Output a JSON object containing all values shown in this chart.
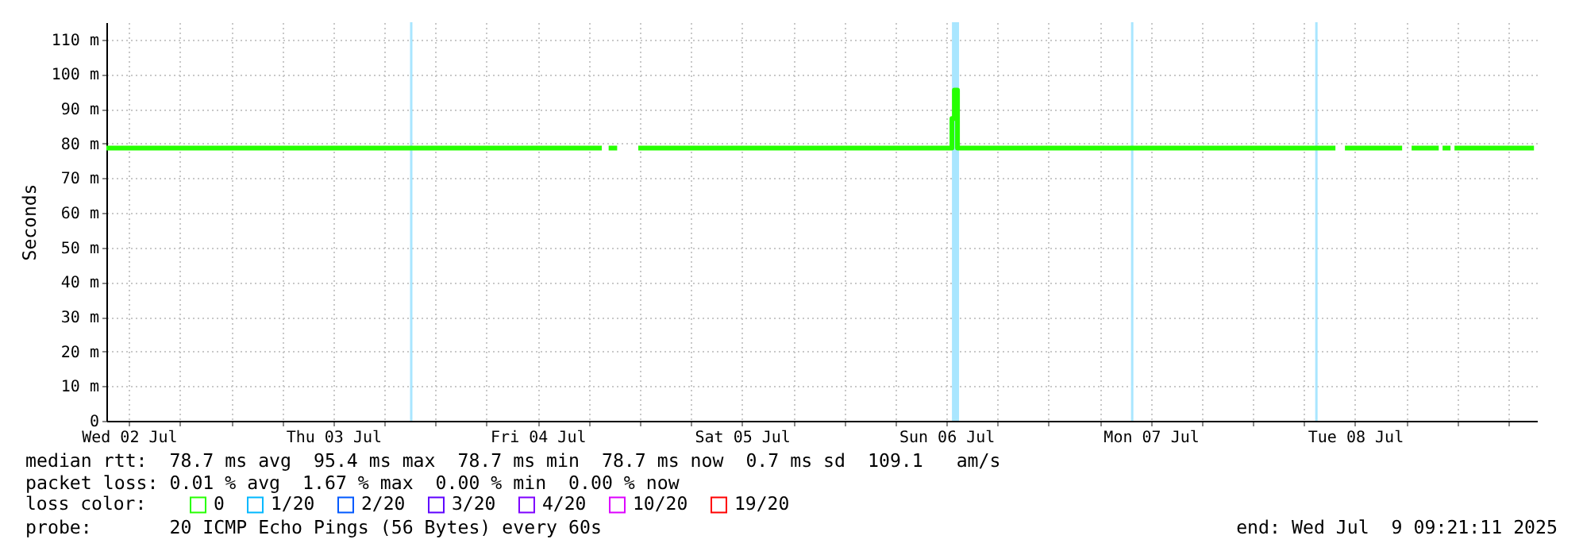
{
  "chart_data": {
    "type": "line",
    "ylabel": "Seconds",
    "legend_title": "loss color:",
    "legend": "bottom",
    "grid": true,
    "xlim": [
      "2025-07-02T09:21",
      "2025-07-09T09:21"
    ],
    "xticks": [
      {
        "value": "2025-07-02T12:00",
        "label": "Wed 02 Jul"
      },
      {
        "value": "2025-07-02T18:00",
        "label": null
      },
      {
        "value": "2025-07-03T00:00",
        "label": null
      },
      {
        "value": "2025-07-03T06:00",
        "label": null
      },
      {
        "value": "2025-07-03T12:00",
        "label": "Thu 03 Jul"
      },
      {
        "value": "2025-07-03T18:00",
        "label": null
      },
      {
        "value": "2025-07-04T00:00",
        "label": null
      },
      {
        "value": "2025-07-04T06:00",
        "label": null
      },
      {
        "value": "2025-07-04T12:00",
        "label": "Fri 04 Jul"
      },
      {
        "value": "2025-07-04T18:00",
        "label": null
      },
      {
        "value": "2025-07-05T00:00",
        "label": null
      },
      {
        "value": "2025-07-05T06:00",
        "label": null
      },
      {
        "value": "2025-07-05T12:00",
        "label": "Sat 05 Jul"
      },
      {
        "value": "2025-07-05T18:00",
        "label": null
      },
      {
        "value": "2025-07-06T00:00",
        "label": null
      },
      {
        "value": "2025-07-06T06:00",
        "label": null
      },
      {
        "value": "2025-07-06T12:00",
        "label": "Sun 06 Jul"
      },
      {
        "value": "2025-07-06T18:00",
        "label": null
      },
      {
        "value": "2025-07-07T00:00",
        "label": null
      },
      {
        "value": "2025-07-07T06:00",
        "label": null
      },
      {
        "value": "2025-07-07T12:00",
        "label": "Mon 07 Jul"
      },
      {
        "value": "2025-07-07T18:00",
        "label": null
      },
      {
        "value": "2025-07-08T00:00",
        "label": null
      },
      {
        "value": "2025-07-08T06:00",
        "label": null
      },
      {
        "value": "2025-07-08T12:00",
        "label": "Tue 08 Jul"
      },
      {
        "value": "2025-07-08T18:00",
        "label": null
      },
      {
        "value": "2025-07-09T00:00",
        "label": null
      },
      {
        "value": "2025-07-09T06:00",
        "label": null
      }
    ],
    "ylim": [
      0,
      115
    ],
    "yticks": [
      0,
      {
        "value": 10,
        "label": "10 m"
      },
      {
        "value": 20,
        "label": "20 m"
      },
      {
        "value": 30,
        "label": "30 m"
      },
      {
        "value": 40,
        "label": "40 m"
      },
      {
        "value": 50,
        "label": "50 m"
      },
      {
        "value": 60,
        "label": "60 m"
      },
      {
        "value": 70,
        "label": "70 m"
      },
      {
        "value": 80,
        "label": "80 m"
      },
      {
        "value": 90,
        "label": "90 m"
      },
      {
        "value": 100,
        "label": "100 m"
      },
      {
        "value": 110,
        "label": "110 m"
      }
    ],
    "series": [
      {
        "name": "0",
        "color": "#26ff00",
        "x": [
          "2025-07-02T09:21",
          "2025-07-04T19:32",
          "2025-07-04T19:56",
          "2025-07-04T20:20",
          "2025-07-04T21:20",
          "2025-07-04T22:30",
          "2025-07-04T23:49",
          "2025-07-06T12:39",
          "2025-07-06T12:39",
          "2025-07-06T12:56",
          "2025-07-06T12:56",
          "2025-07-06T13:18",
          "2025-07-06T13:18",
          "2025-07-08T09:41",
          "2025-07-08T10:15",
          "2025-07-08T10:48",
          "2025-07-08T17:31",
          "2025-07-08T18:05",
          "2025-07-08T18:38",
          "2025-07-08T21:49",
          "2025-07-08T22:02",
          "2025-07-08T22:16",
          "2025-07-08T23:12",
          "2025-07-08T23:26",
          "2025-07-08T23:40",
          "2025-07-09T09:00"
        ],
        "values": [
          78.7,
          78.7,
          null,
          78.7,
          78.7,
          null,
          78.7,
          78.7,
          87.2,
          87.2,
          95.4,
          95.4,
          78.7,
          78.7,
          null,
          78.7,
          78.7,
          null,
          78.7,
          78.7,
          null,
          78.7,
          78.7,
          null,
          78.7,
          78.7
        ]
      },
      {
        "name": "1/20",
        "color": "#00b8ff"
      },
      {
        "name": "2/20",
        "color": "#0059ff"
      },
      {
        "name": "3/20",
        "color": "#5e00ff"
      },
      {
        "name": "4/20",
        "color": "#7e00ff"
      },
      {
        "name": "10/20",
        "color": "#dd00ff"
      },
      {
        "name": "19/20",
        "color": "#ff0000"
      }
    ],
    "bands": [
      {
        "axis": "x",
        "from": "2025-07-06T12:39",
        "to": "2025-07-06T13:29",
        "color": "#a9e6ff"
      }
    ],
    "ref_lines": [
      {
        "axis": "x",
        "value": "2025-07-03T21:09",
        "color": "#a9e6ff"
      },
      {
        "axis": "x",
        "value": "2025-07-07T09:49",
        "color": "#a9e6ff"
      },
      {
        "axis": "x",
        "value": "2025-07-08T07:27",
        "color": "#a9e6ff"
      }
    ],
    "annotations": [
      "median rtt:  78.7 ms avg  95.4 ms max  78.7 ms min  78.7 ms now  0.7 ms sd  109.1   am/s",
      "packet loss: 0.01 % avg  1.67 % max  0.00 % min  0.00 % now",
      "probe:       20 ICMP Echo Pings (56 Bytes) every 60s",
      "end: Wed Jul  9 09:21:11 2025"
    ]
  }
}
